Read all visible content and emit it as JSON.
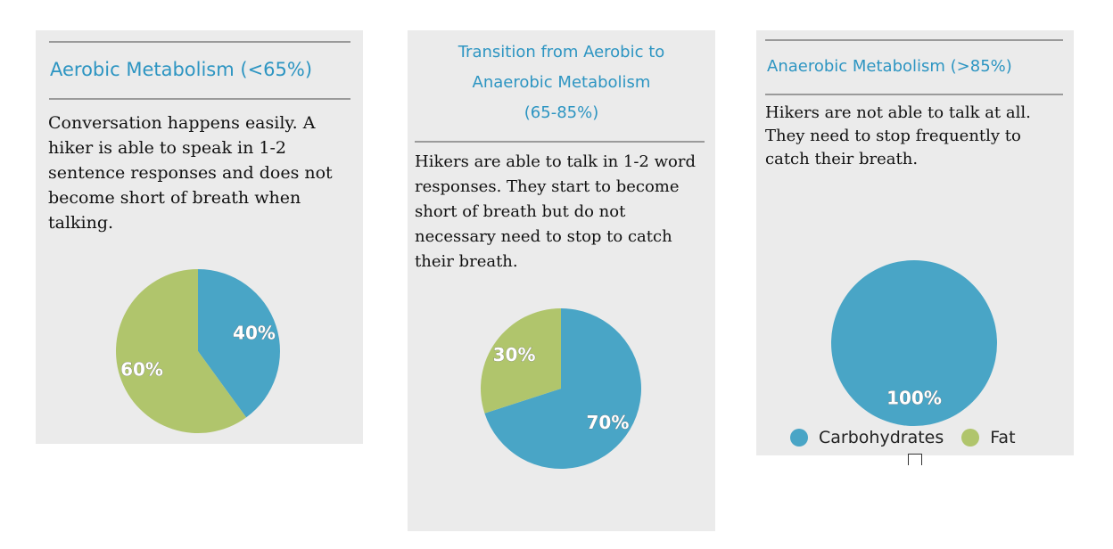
{
  "colors": {
    "carbohydrates": "#49a5c6",
    "fat": "#b0c56c",
    "title": "#2d95c2",
    "panel_bg": "#ebebeb"
  },
  "panels": [
    {
      "title": "Aerobic Metabolism (<65%)",
      "description": "Conversation happens easily. A hiker is able to speak in 1-2 sentence responses and does not become short of breath when talking."
    },
    {
      "title": "Transition from Aerobic to\nAnaerobic Metabolism\n(65-85%)",
      "description": "Hikers are able to talk in 1-2 word responses. They start to become short of breath but do not necessary need to stop to catch their breath."
    },
    {
      "title": "Anaerobic Metabolism (>85%)",
      "description": "Hikers are not able to talk at all. They need to stop frequently to catch their breath."
    }
  ],
  "legend": {
    "items": [
      {
        "label": "Carbohydrates",
        "color": "#49a5c6"
      },
      {
        "label": "Fat",
        "color": "#b0c56c"
      }
    ]
  },
  "chart_data": [
    {
      "type": "pie",
      "categories": [
        "Carbohydrates",
        "Fat"
      ],
      "values": [
        40,
        60
      ],
      "labels": [
        "40%",
        "60%"
      ]
    },
    {
      "type": "pie",
      "categories": [
        "Carbohydrates",
        "Fat"
      ],
      "values": [
        70,
        30
      ],
      "labels": [
        "70%",
        "30%"
      ]
    },
    {
      "type": "pie",
      "categories": [
        "Carbohydrates",
        "Fat"
      ],
      "values": [
        100,
        0
      ],
      "labels": [
        "100%",
        ""
      ]
    }
  ]
}
